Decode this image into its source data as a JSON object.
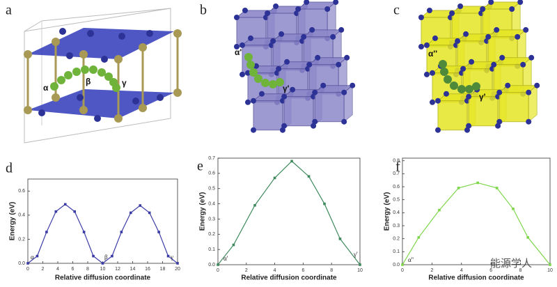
{
  "structures": [
    {
      "panel": "a",
      "annotations": [
        "α",
        "β",
        "γ"
      ]
    },
    {
      "panel": "b",
      "annotations": [
        "α'",
        "γ'"
      ]
    },
    {
      "panel": "c",
      "annotations": [
        "α''",
        "γ'"
      ]
    }
  ],
  "watermark": "能源学人",
  "chart_data": [
    {
      "type": "line",
      "panel": "d",
      "x_label": "Relative diffusion coordinate",
      "y_label": "Energy (eV)",
      "x": [
        0,
        1.25,
        2.5,
        3.75,
        5,
        6.25,
        7.5,
        8.75,
        10,
        11.25,
        12.5,
        13.75,
        15,
        16.25,
        17.5,
        18.75,
        20
      ],
      "values": [
        0,
        0.06,
        0.26,
        0.43,
        0.49,
        0.43,
        0.26,
        0.06,
        0,
        0.06,
        0.26,
        0.42,
        0.48,
        0.42,
        0.26,
        0.06,
        0
      ],
      "color": "#3b3ba6",
      "xlim": [
        0,
        20
      ],
      "ylim": [
        0,
        0.7
      ],
      "xticks": [
        0,
        2,
        4,
        6,
        8,
        10,
        12,
        14,
        16,
        18,
        20
      ],
      "yticks": [
        {
          "value": 0,
          "label": "0.0"
        },
        0.2,
        0.4,
        0.6
      ],
      "annotations": [
        "α",
        "β",
        "γ"
      ]
    },
    {
      "type": "line",
      "panel": "e",
      "x_label": "Relative diffusion coordinate",
      "y_label": "Energy (eV)",
      "x": [
        0,
        1.1,
        2.6,
        4,
        5.2,
        6.4,
        7.5,
        8.6,
        10
      ],
      "values": [
        0,
        0.13,
        0.39,
        0.57,
        0.68,
        0.58,
        0.4,
        0.17,
        0
      ],
      "color": "#3f8a5c",
      "xlim": [
        0,
        10
      ],
      "ylim": [
        0,
        0.7
      ],
      "xticks": [
        0,
        2,
        4,
        6,
        8,
        10
      ],
      "yticks": [
        {
          "value": 0,
          "label": "0.0"
        },
        0.1,
        0.2,
        0.3,
        0.4,
        0.5,
        0.6,
        0.7
      ],
      "annotations": [
        "α'",
        "γ'"
      ]
    },
    {
      "type": "line",
      "panel": "f",
      "x_label": "Relative diffusion coordinate",
      "y_label": "Energy (eV)",
      "x": [
        0,
        1.1,
        2.5,
        3.8,
        5.1,
        6.4,
        7.5,
        8.5,
        10
      ],
      "values": [
        0,
        0.21,
        0.42,
        0.59,
        0.63,
        0.59,
        0.43,
        0.21,
        0
      ],
      "color": "#7ed64a",
      "xlim": [
        0,
        10
      ],
      "ylim": [
        0,
        0.82
      ],
      "xticks": [
        0,
        2,
        4,
        6,
        8,
        10
      ],
      "yticks": [
        {
          "value": 0,
          "label": "0.0"
        },
        0.1,
        0.2,
        0.3,
        0.4,
        0.5,
        0.6,
        0.7,
        0.8
      ],
      "annotations": [
        "α''"
      ]
    }
  ]
}
